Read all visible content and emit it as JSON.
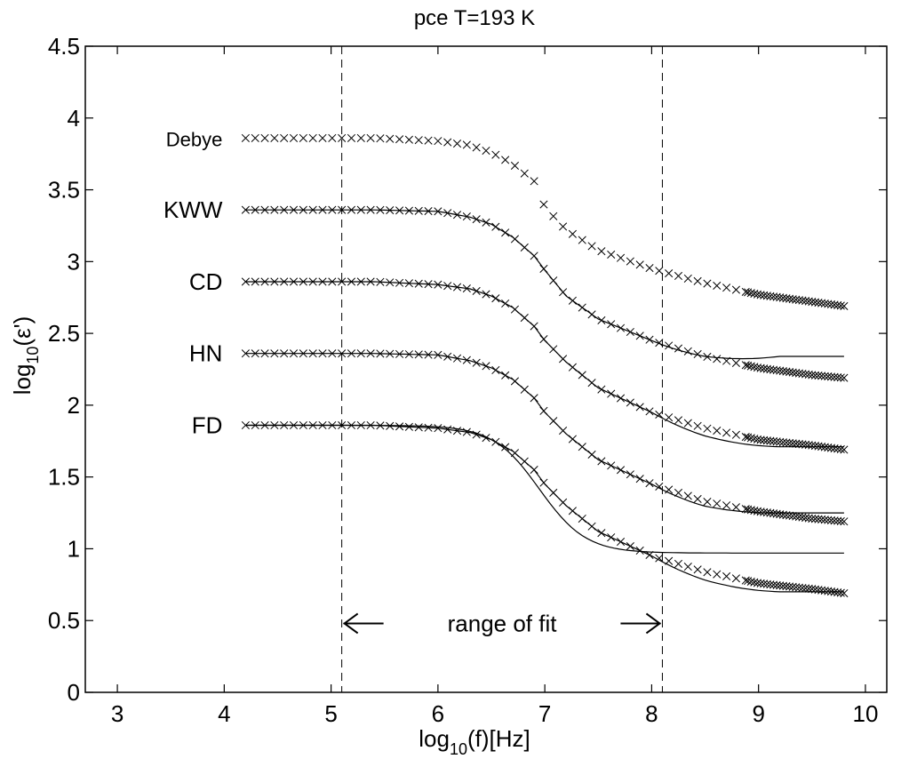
{
  "chart_data": {
    "type": "scatter",
    "title": "pce    T=193 K",
    "xlabel": {
      "pre": "log",
      "sub": "10",
      "post": "(f)[Hz]"
    },
    "ylabel": {
      "pre": "log",
      "sub": "10",
      "post": "(ε')"
    },
    "xlim": [
      2.7,
      10.2
    ],
    "ylim": [
      0,
      4.5
    ],
    "xticks": [
      "3",
      "4",
      "5",
      "6",
      "7",
      "8",
      "9",
      "10"
    ],
    "xtick_values": [
      3,
      4,
      5,
      6,
      7,
      8,
      9,
      10
    ],
    "yticks": [
      "0",
      "0.5",
      "1",
      "1.5",
      "2",
      "2.5",
      "3",
      "3.5",
      "4",
      "4.5"
    ],
    "ytick_values": [
      0,
      0.5,
      1,
      1.5,
      2,
      2.5,
      3,
      3.5,
      4,
      4.5
    ],
    "grid": false,
    "legend": "none",
    "fit_range": [
      5.1,
      8.1
    ],
    "annotation": "range of fit",
    "series": [
      {
        "name": "Debye",
        "offset": 2.0,
        "fit_end": 0.97,
        "data": [
          [
            4.2,
            3.86
          ],
          [
            4.8,
            3.86
          ],
          [
            5.4,
            3.86
          ],
          [
            6.0,
            3.84
          ],
          [
            6.3,
            3.81
          ],
          [
            6.5,
            3.76
          ],
          [
            6.7,
            3.68
          ],
          [
            6.9,
            3.56
          ],
          [
            7.0,
            3.38
          ],
          [
            7.2,
            3.22
          ],
          [
            7.5,
            3.08
          ],
          [
            8.0,
            2.95
          ],
          [
            8.5,
            2.85
          ],
          [
            9.0,
            2.77
          ],
          [
            9.5,
            2.72
          ],
          [
            9.8,
            2.69
          ]
        ]
      },
      {
        "name": "KWW",
        "offset": 1.5,
        "fit_end": 0.84,
        "data": [
          [
            4.2,
            3.36
          ],
          [
            4.8,
            3.36
          ],
          [
            5.4,
            3.36
          ],
          [
            6.0,
            3.35
          ],
          [
            6.3,
            3.31
          ],
          [
            6.5,
            3.26
          ],
          [
            6.7,
            3.17
          ],
          [
            6.9,
            3.04
          ],
          [
            7.0,
            2.94
          ],
          [
            7.2,
            2.76
          ],
          [
            7.5,
            2.6
          ],
          [
            8.0,
            2.45
          ],
          [
            8.5,
            2.34
          ],
          [
            9.0,
            2.26
          ],
          [
            9.5,
            2.21
          ],
          [
            9.8,
            2.19
          ]
        ]
      },
      {
        "name": "CD",
        "offset": 1.0,
        "fit_end": 0.71,
        "data": [
          [
            4.2,
            2.86
          ],
          [
            4.8,
            2.86
          ],
          [
            5.4,
            2.86
          ],
          [
            6.0,
            2.84
          ],
          [
            6.3,
            2.81
          ],
          [
            6.5,
            2.76
          ],
          [
            6.7,
            2.68
          ],
          [
            6.9,
            2.55
          ],
          [
            7.0,
            2.45
          ],
          [
            7.2,
            2.3
          ],
          [
            7.5,
            2.12
          ],
          [
            8.0,
            1.95
          ],
          [
            8.5,
            1.84
          ],
          [
            9.0,
            1.76
          ],
          [
            9.5,
            1.72
          ],
          [
            9.8,
            1.69
          ]
        ]
      },
      {
        "name": "HN",
        "offset": 0.5,
        "fit_end": 0.75,
        "data": [
          [
            4.2,
            2.36
          ],
          [
            4.8,
            2.36
          ],
          [
            5.4,
            2.36
          ],
          [
            6.0,
            2.35
          ],
          [
            6.3,
            2.31
          ],
          [
            6.5,
            2.26
          ],
          [
            6.7,
            2.18
          ],
          [
            6.9,
            2.05
          ],
          [
            7.0,
            1.95
          ],
          [
            7.2,
            1.8
          ],
          [
            7.5,
            1.62
          ],
          [
            8.0,
            1.45
          ],
          [
            8.5,
            1.33
          ],
          [
            9.0,
            1.26
          ],
          [
            9.5,
            1.21
          ],
          [
            9.8,
            1.19
          ]
        ]
      },
      {
        "name": "FD",
        "offset": 0.0,
        "fit_end": 0.7,
        "data": [
          [
            4.2,
            1.86
          ],
          [
            4.8,
            1.86
          ],
          [
            5.4,
            1.86
          ],
          [
            6.0,
            1.84
          ],
          [
            6.3,
            1.81
          ],
          [
            6.5,
            1.76
          ],
          [
            6.7,
            1.68
          ],
          [
            6.9,
            1.55
          ],
          [
            7.0,
            1.45
          ],
          [
            7.2,
            1.3
          ],
          [
            7.5,
            1.12
          ],
          [
            8.0,
            0.95
          ],
          [
            8.5,
            0.84
          ],
          [
            9.0,
            0.76
          ],
          [
            9.5,
            0.72
          ],
          [
            9.8,
            0.69
          ]
        ]
      }
    ],
    "colors": {
      "line": "#000000",
      "marker": "#000000",
      "background": "#ffffff"
    }
  }
}
